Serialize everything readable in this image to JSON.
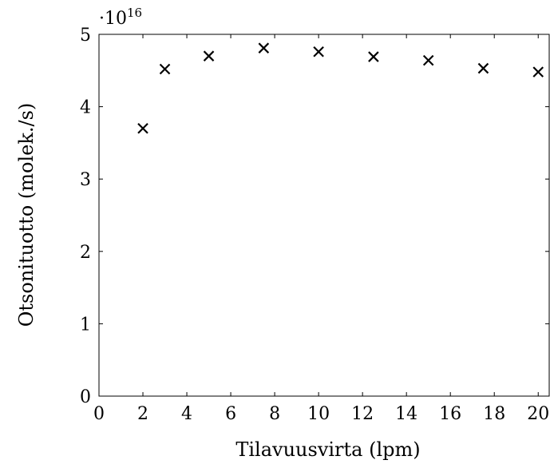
{
  "chart_data": {
    "type": "scatter",
    "title": "",
    "xlabel": "Tilavuusvirta (lpm)",
    "ylabel": "Otsonituotto (molek./s)",
    "y_multiplier_base": "·10",
    "y_multiplier_exponent": "16",
    "xlim": [
      0,
      20.5
    ],
    "ylim": [
      0,
      5
    ],
    "x_ticks": [
      0,
      2,
      4,
      6,
      8,
      10,
      12,
      14,
      16,
      18,
      20
    ],
    "y_ticks": [
      0,
      1,
      2,
      3,
      4,
      5
    ],
    "grid": false,
    "marker": "x",
    "series": [
      {
        "x": [
          2,
          3,
          5,
          7.5,
          10,
          12.5,
          15,
          17.5,
          20
        ],
        "y": [
          3.7,
          4.52,
          4.7,
          4.81,
          4.76,
          4.69,
          4.64,
          4.53,
          4.48
        ]
      }
    ]
  }
}
